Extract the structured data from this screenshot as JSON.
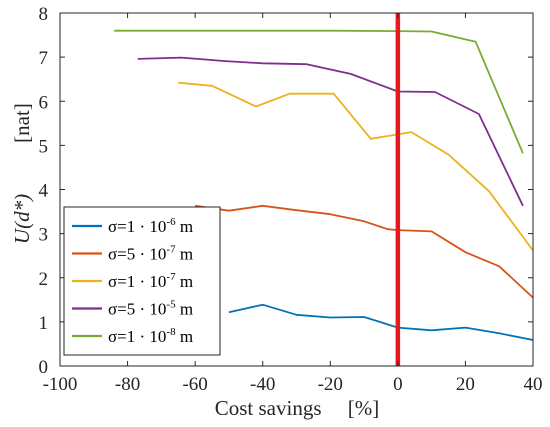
{
  "chart_data": {
    "type": "line",
    "xlabel": "Cost savings     [%]",
    "ylabel_main": "U(d*)",
    "ylabel_unit": "[nat]",
    "xlim": [
      -100,
      40
    ],
    "ylim": [
      0,
      8
    ],
    "xticks": [
      -100,
      -80,
      -60,
      -40,
      -20,
      0,
      20,
      40
    ],
    "yticks": [
      0,
      1,
      2,
      3,
      4,
      5,
      6,
      7,
      8
    ],
    "grid": false,
    "legend_position": "bottom-left",
    "vline": {
      "x": 0,
      "color": "#e41a1c"
    },
    "series": [
      {
        "name_prefix": "σ=1 · 10",
        "exponent": "-6",
        "unit": " m",
        "color": "#0072BD",
        "x": [
          -50,
          -40,
          -30,
          -20,
          -10,
          0,
          10,
          20,
          30,
          40
        ],
        "y": [
          1.22,
          1.39,
          1.16,
          1.1,
          1.11,
          0.87,
          0.81,
          0.87,
          0.74,
          0.59
        ]
      },
      {
        "name_prefix": "σ=5 · 10",
        "exponent": "-7",
        "unit": " m",
        "color": "#D95319",
        "x": [
          -60,
          -50,
          -40,
          -30,
          -20,
          -10,
          -3,
          0,
          10,
          20,
          30,
          40
        ],
        "y": [
          3.63,
          3.52,
          3.63,
          3.53,
          3.44,
          3.28,
          3.1,
          3.08,
          3.05,
          2.58,
          2.26,
          1.55
        ]
      },
      {
        "name_prefix": "σ=1 · 10",
        "exponent": "-7",
        "unit": " m",
        "color": "#EDB120",
        "x": [
          -65,
          -55,
          -42,
          -32,
          -19,
          -8,
          4,
          15,
          27,
          40
        ],
        "y": [
          6.42,
          6.35,
          5.88,
          6.17,
          6.17,
          5.15,
          5.3,
          4.79,
          3.96,
          2.62
        ]
      },
      {
        "name_prefix": "σ=5 · 10",
        "exponent": "-5",
        "unit": " m",
        "color": "#7E2F8E",
        "x": [
          -77,
          -64,
          -51,
          -40,
          -27,
          -14,
          0,
          11,
          24,
          37
        ],
        "y": [
          6.96,
          6.99,
          6.91,
          6.86,
          6.84,
          6.62,
          6.22,
          6.21,
          5.71,
          3.63
        ]
      },
      {
        "name_prefix": "σ=1 · 10",
        "exponent": "-8",
        "unit": " m",
        "color": "#77AC30",
        "x": [
          -84,
          -60,
          -40,
          -20,
          0,
          10,
          23,
          37
        ],
        "y": [
          7.6,
          7.6,
          7.6,
          7.6,
          7.59,
          7.58,
          7.35,
          4.82
        ]
      }
    ]
  }
}
